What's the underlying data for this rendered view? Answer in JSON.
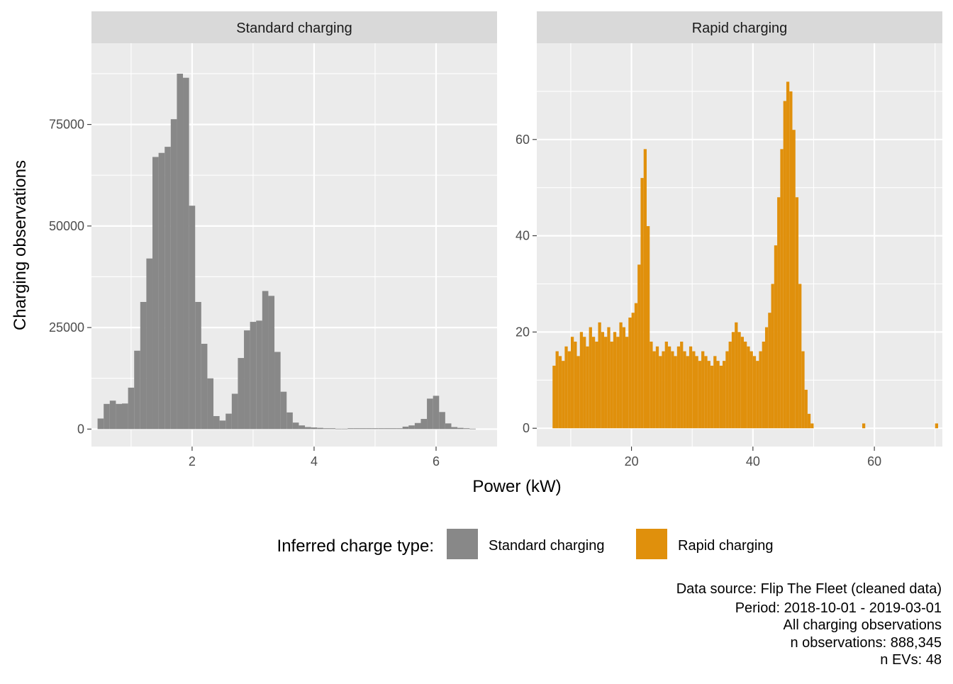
{
  "chart_data": {
    "type": "bar",
    "xlabel": "Power (kW)",
    "ylabel": "Charging observations",
    "legend": {
      "title": "Inferred charge type:",
      "position": "bottom",
      "entries": [
        {
          "label": "Standard charging",
          "color": "#888888"
        },
        {
          "label": "Rapid charging",
          "color": "#E0900C"
        }
      ]
    },
    "panels": [
      {
        "strip": "Standard charging",
        "color": "#888888",
        "xlim": [
          0.35,
          7.0
        ],
        "ylim": [
          -4300,
          95000
        ],
        "x_ticks": [
          2,
          4,
          6
        ],
        "x_tick_labels": [
          "2",
          "4",
          "6"
        ],
        "y_ticks": [
          0,
          25000,
          50000,
          75000
        ],
        "y_tick_labels": [
          "0",
          "25000",
          "50000",
          "75000"
        ],
        "bin_width": 0.1,
        "bin_starts": [
          0.45,
          0.55,
          0.65,
          0.75,
          0.85,
          0.95,
          1.05,
          1.15,
          1.25,
          1.35,
          1.45,
          1.55,
          1.65,
          1.75,
          1.85,
          1.95,
          2.05,
          2.15,
          2.25,
          2.35,
          2.45,
          2.55,
          2.65,
          2.75,
          2.85,
          2.95,
          3.05,
          3.15,
          3.25,
          3.35,
          3.45,
          3.55,
          3.65,
          3.75,
          3.85,
          3.95,
          4.05,
          4.15,
          4.25,
          4.35,
          4.45,
          4.55,
          4.65,
          4.75,
          4.85,
          4.95,
          5.05,
          5.15,
          5.25,
          5.35,
          5.45,
          5.55,
          5.65,
          5.75,
          5.85,
          5.95,
          6.05,
          6.15,
          6.25,
          6.35,
          6.45,
          6.55
        ],
        "values": [
          2600,
          6200,
          7000,
          6200,
          6300,
          10200,
          19300,
          31300,
          42000,
          67000,
          68000,
          69500,
          76300,
          87500,
          86500,
          55000,
          31300,
          21000,
          12500,
          3200,
          2100,
          3800,
          8700,
          17500,
          24300,
          26400,
          26700,
          34000,
          32800,
          19000,
          9200,
          4100,
          1600,
          900,
          500,
          400,
          300,
          200,
          200,
          100,
          100,
          200,
          200,
          200,
          200,
          200,
          200,
          200,
          200,
          200,
          600,
          900,
          1500,
          2500,
          7500,
          8200,
          4200,
          1400,
          500,
          300,
          200,
          100
        ]
      },
      {
        "strip": "Rapid charging",
        "color": "#E0900C",
        "xlim": [
          4.4,
          71.2
        ],
        "ylim": [
          -3.8,
          80
        ],
        "x_ticks": [
          20,
          40,
          60
        ],
        "x_tick_labels": [
          "20",
          "40",
          "60"
        ],
        "y_ticks": [
          0,
          20,
          40,
          60
        ],
        "y_tick_labels": [
          "0",
          "20",
          "40",
          "60"
        ],
        "bin_width": 0.5,
        "bin_starts": [
          7.0,
          7.5,
          8.0,
          8.5,
          9.0,
          9.5,
          10.0,
          10.5,
          11.0,
          11.5,
          12.0,
          12.5,
          13.0,
          13.5,
          14.0,
          14.5,
          15.0,
          15.5,
          16.0,
          16.5,
          17.0,
          17.5,
          18.0,
          18.5,
          19.0,
          19.5,
          20.0,
          20.5,
          21.0,
          21.5,
          22.0,
          22.5,
          23.0,
          23.5,
          24.0,
          24.5,
          25.0,
          25.5,
          26.0,
          26.5,
          27.0,
          27.5,
          28.0,
          28.5,
          29.0,
          29.5,
          30.0,
          30.5,
          31.0,
          31.5,
          32.0,
          32.5,
          33.0,
          33.5,
          34.0,
          34.5,
          35.0,
          35.5,
          36.0,
          36.5,
          37.0,
          37.5,
          38.0,
          38.5,
          39.0,
          39.5,
          40.0,
          40.5,
          41.0,
          41.5,
          42.0,
          42.5,
          43.0,
          43.5,
          44.0,
          44.5,
          45.0,
          45.5,
          46.0,
          46.5,
          47.0,
          47.5,
          48.0,
          48.5,
          49.0,
          49.5,
          58.0,
          70.0
        ],
        "values": [
          13,
          16,
          15,
          14,
          17,
          16,
          19,
          18,
          15,
          20,
          19,
          17,
          21,
          19,
          18,
          22,
          20,
          19,
          21,
          18,
          20,
          19,
          22,
          21,
          19,
          23,
          24,
          26,
          34,
          52,
          58,
          42,
          18,
          16,
          17,
          15,
          16,
          18,
          17,
          16,
          15,
          17,
          18,
          16,
          15,
          17,
          16,
          15,
          14,
          16,
          15,
          14,
          13,
          15,
          14,
          13,
          14,
          16,
          18,
          20,
          22,
          20,
          19,
          18,
          17,
          16,
          15,
          14,
          16,
          18,
          21,
          24,
          30,
          38,
          48,
          58,
          68,
          72,
          70,
          62,
          48,
          30,
          16,
          8,
          3,
          1,
          1,
          1
        ]
      }
    ]
  },
  "caption": {
    "lines": [
      "Data source: Flip The Fleet (cleaned data)",
      "Period: 2018-10-01 - 2019-03-01",
      "All charging observations",
      "n observations: 888,345",
      "n EVs: 48"
    ]
  }
}
